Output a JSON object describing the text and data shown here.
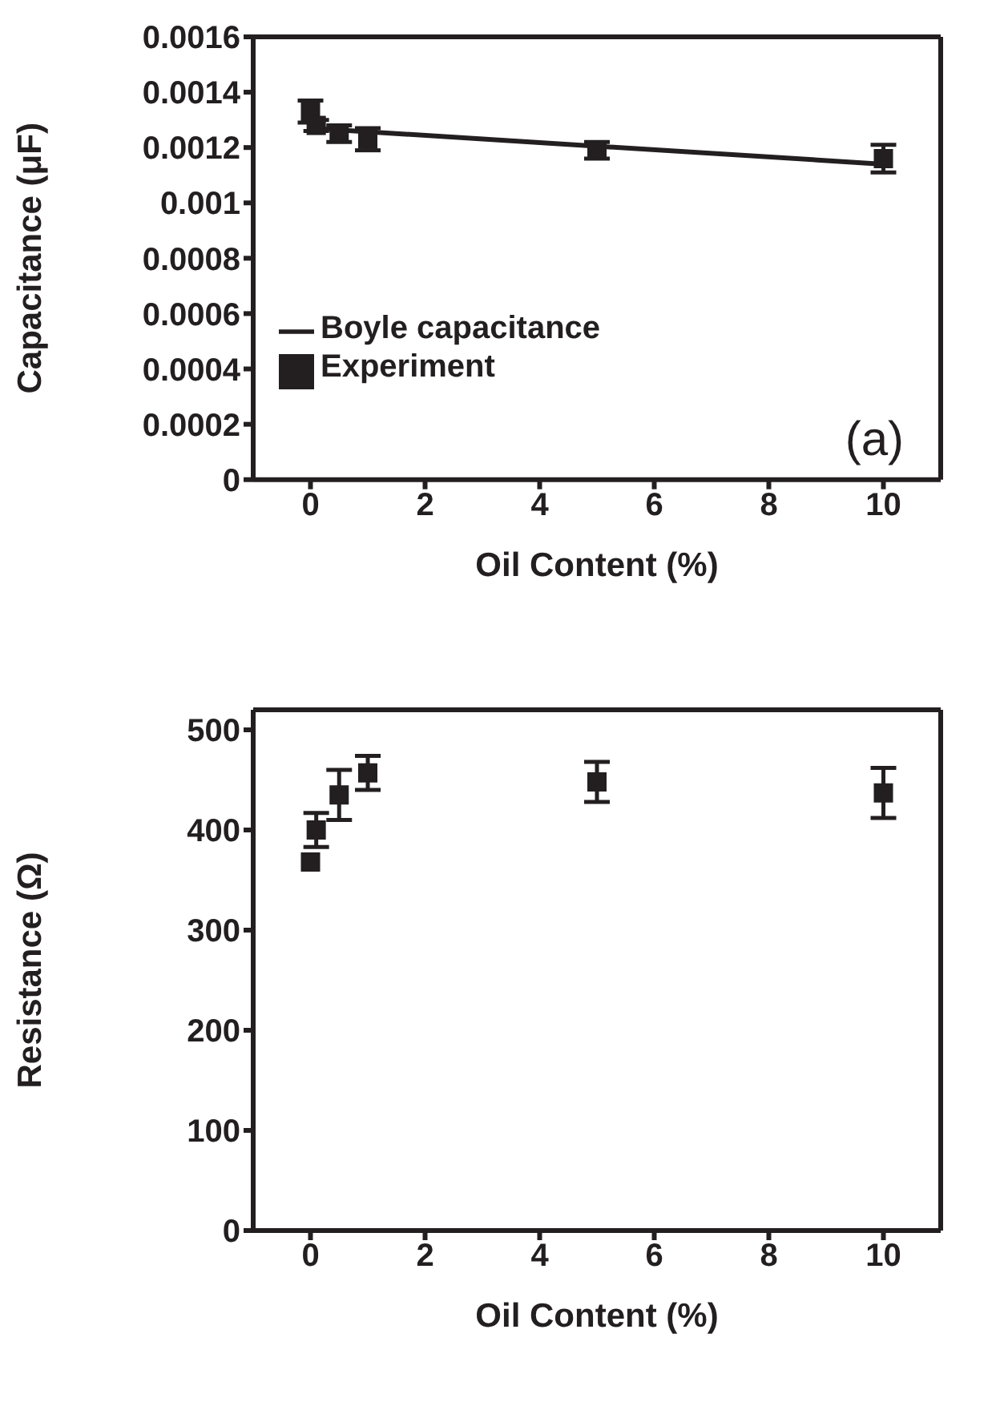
{
  "chart_data": [
    {
      "type": "scatter",
      "xlabel": "Oil Content (%)",
      "ylabel": "Capacitance (μF)",
      "xlim": [
        -1,
        11
      ],
      "xticks": [
        0,
        2,
        4,
        6,
        8,
        10
      ],
      "ylim": [
        0,
        0.0016
      ],
      "yticks": [
        0,
        0.0002,
        0.0004,
        0.0006,
        0.0008,
        0.001,
        0.0012,
        0.0014,
        0.0016
      ],
      "grid": false,
      "legend": "left",
      "annotations": [
        "(a)"
      ],
      "series": [
        {
          "name": "Experiment",
          "marker": "square",
          "color": "#231f20",
          "x": [
            0,
            0.1,
            0.5,
            1,
            5,
            10
          ],
          "values": [
            0.00133,
            0.00128,
            0.00125,
            0.00123,
            0.00119,
            0.00116
          ],
          "errors": [
            4e-05,
            2e-05,
            3e-05,
            4e-05,
            3e-05,
            5e-05
          ]
        },
        {
          "name": "Boyle capacitance",
          "type": "line",
          "marker": "none",
          "line_style": "solid",
          "color": "#231f20",
          "x": [
            0,
            10
          ],
          "values": [
            0.00127,
            0.00114
          ]
        }
      ]
    },
    {
      "type": "scatter",
      "xlabel": "Oil Content (%)",
      "ylabel": "Resistance (Ω)",
      "xlim": [
        -1,
        11
      ],
      "xticks": [
        0,
        2,
        4,
        6,
        8,
        10
      ],
      "ylim": [
        0,
        520
      ],
      "yticks": [
        0,
        100,
        200,
        300,
        400,
        500
      ],
      "grid": false,
      "legend": false,
      "series": [
        {
          "marker": "square",
          "color": "#231f20",
          "x": [
            0,
            0.1,
            0.5,
            1,
            5,
            10
          ],
          "values": [
            368,
            400,
            435,
            457,
            448,
            437
          ],
          "errors": [
            null,
            17,
            25,
            17,
            20,
            25
          ]
        }
      ]
    }
  ]
}
